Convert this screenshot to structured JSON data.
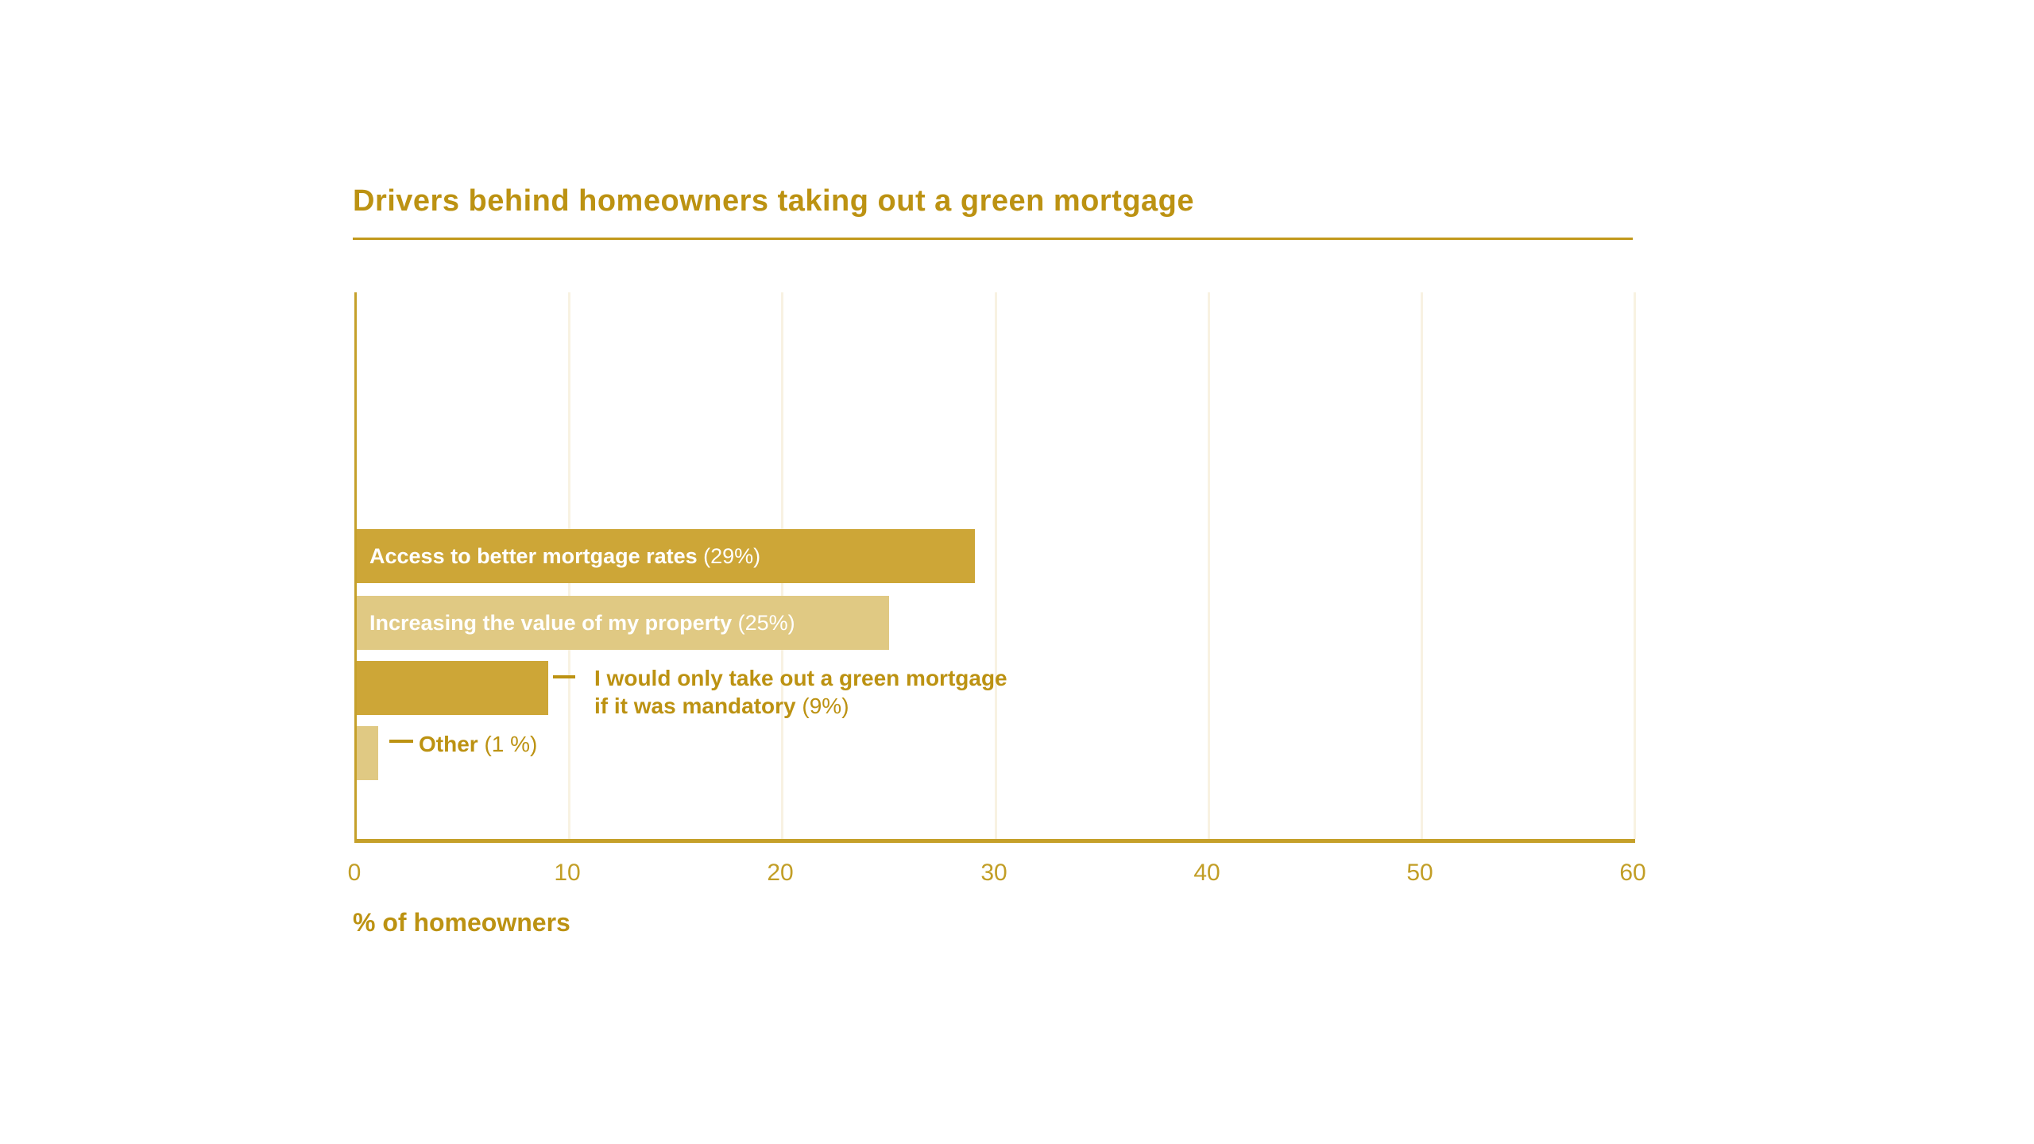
{
  "colors": {
    "bar_gold_dark": "#CDA637",
    "bar_gold_light": "#E0C983",
    "text_gold": "#BC9212",
    "axis_gold": "#C5A02A",
    "tick_gold": "#C29E26",
    "gridline_cream": "#F8F2E2",
    "inside_label_white": "#FFFFFF"
  },
  "chart_data": {
    "type": "bar",
    "orientation": "horizontal",
    "title": "Drivers behind homeowners taking out a green mortgage",
    "xlabel": "% of homeowners",
    "xlim": [
      0,
      60
    ],
    "xticks": [
      "0",
      "10",
      "20",
      "30",
      "40",
      "50",
      "60"
    ],
    "grid": "vertical gridlines at each x tick, cream colored",
    "legend": "none",
    "bars": [
      {
        "name": "Access to better mortgage rates",
        "name_lines": [
          "Access to better mortgage rates"
        ],
        "pct_label": "(29%)",
        "value": 29,
        "shade": "dark",
        "label_placement": "inside"
      },
      {
        "name": "Increasing the value of my property",
        "name_lines": [
          "Increasing the value of my property"
        ],
        "pct_label": "(25%)",
        "value": 25,
        "shade": "light",
        "label_placement": "inside"
      },
      {
        "name": "I would only take out a green mortgage if it was mandatory",
        "name_lines": [
          "I would only take out a green mortgage",
          "if it was mandatory"
        ],
        "pct_label": "(9%)",
        "value": 9,
        "shade": "dark",
        "label_placement": "outside"
      },
      {
        "name": "Other",
        "name_lines": [
          "Other"
        ],
        "pct_label": "(1 %)",
        "value": 1,
        "shade": "light",
        "label_placement": "outside"
      }
    ]
  }
}
